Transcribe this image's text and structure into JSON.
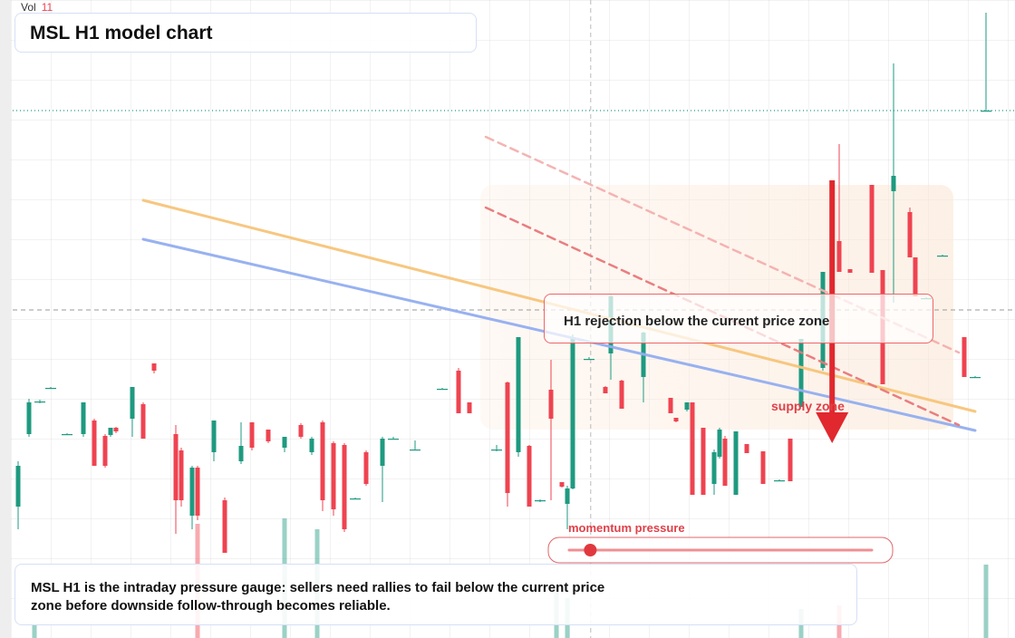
{
  "chart_data": {
    "type": "candlestick",
    "title": "MSL H1 model chart",
    "xlim": [
      0,
      184
    ],
    "ylim": [
      0,
      70.4
    ],
    "up_color": "#1e9a80",
    "down_color": "#ef4350",
    "x": [
      1,
      3,
      5,
      7,
      10,
      13,
      15,
      17,
      18,
      19,
      22,
      24,
      26,
      30,
      31,
      33,
      34,
      37,
      39,
      42,
      44,
      47,
      50,
      53,
      55,
      57,
      59,
      61,
      63,
      65,
      68,
      70,
      74,
      79,
      82,
      84,
      89,
      91,
      93,
      95,
      97,
      99,
      101,
      102,
      103,
      106,
      109,
      110,
      112,
      116,
      121,
      122,
      124,
      125,
      127,
      129,
      130,
      131,
      133,
      135,
      138,
      141,
      143,
      145,
      149,
      152,
      154,
      158,
      160,
      162,
      165,
      166,
      168,
      171,
      175,
      177,
      179
    ],
    "ohlc": [
      [
        14.5,
        19.5,
        12,
        19
      ],
      [
        22.5,
        26.4,
        22.2,
        26
      ],
      [
        26,
        26.3,
        25.9,
        26.1
      ],
      [
        27.6,
        27.7,
        27.5,
        27.6
      ],
      [
        22.5,
        22.6,
        22.4,
        22.5
      ],
      [
        22.5,
        26,
        22.2,
        26
      ],
      [
        24,
        24.2,
        19,
        19
      ],
      [
        22.3,
        22.5,
        18.8,
        19
      ],
      [
        22.4,
        23.2,
        22.2,
        23.2
      ],
      [
        23.2,
        23.3,
        22.6,
        22.8
      ],
      [
        24.2,
        27.7,
        22.2,
        27.7
      ],
      [
        25.8,
        26,
        22,
        22
      ],
      [
        30.3,
        30.3,
        29.2,
        29.5
      ],
      [
        22.5,
        23.5,
        11.5,
        15.2
      ],
      [
        20.7,
        21,
        14.5,
        15.2
      ],
      [
        13.5,
        19,
        12,
        18.8
      ],
      [
        18.8,
        19,
        13,
        13.5
      ],
      [
        20.5,
        24,
        19.5,
        24
      ],
      [
        15.2,
        15.5,
        9.4,
        9.4
      ],
      [
        19.5,
        23.8,
        19.2,
        21.2
      ],
      [
        23.8,
        23.8,
        20.7,
        21
      ],
      [
        23,
        23,
        21.5,
        21.7
      ],
      [
        21,
        22.2,
        20.5,
        22.2
      ],
      [
        23.5,
        23.7,
        22,
        22.2
      ],
      [
        20.5,
        22.2,
        20.2,
        22
      ],
      [
        23.8,
        24,
        14,
        15.2
      ],
      [
        21.5,
        21.7,
        13.5,
        14.2
      ],
      [
        21.3,
        21.5,
        11.7,
        12
      ],
      [
        15.4,
        15.5,
        15.3,
        15.4
      ],
      [
        20.5,
        20.7,
        16.8,
        17
      ],
      [
        19,
        22.2,
        15,
        22
      ],
      [
        22,
        22.2,
        21.9,
        22
      ],
      [
        20.8,
        21.8,
        20.7,
        20.8
      ],
      [
        27.5,
        27.6,
        27.4,
        27.5
      ],
      [
        29.5,
        29.8,
        24.8,
        24.8
      ],
      [
        26,
        26,
        24.8,
        24.8
      ],
      [
        20.8,
        21.3,
        20.6,
        20.8
      ],
      [
        28.2,
        28.3,
        14.5,
        16
      ],
      [
        20.5,
        33.2,
        20,
        33.2
      ],
      [
        21.2,
        21.3,
        14.5,
        14.5
      ],
      [
        15.2,
        15.3,
        15,
        15.2
      ],
      [
        27.4,
        30.7,
        15.2,
        24.2
      ],
      [
        17.2,
        17.2,
        16.6,
        16.7
      ],
      [
        14.8,
        16.8,
        12,
        16.5
      ],
      [
        16.5,
        33.5,
        16.4,
        33.2
      ],
      [
        30.8,
        31,
        30.7,
        30.8
      ],
      [
        27.7,
        27.8,
        27,
        27
      ],
      [
        31.4,
        38,
        28.5,
        37.7
      ],
      [
        28.4,
        28.5,
        25.3,
        25.3
      ],
      [
        28.8,
        33.8,
        26,
        33.7
      ],
      [
        26.5,
        26.5,
        24.8,
        24.8
      ],
      [
        24.3,
        24.3,
        23.8,
        23.9
      ],
      [
        25.2,
        26,
        25,
        26
      ],
      [
        26,
        26,
        15.8,
        15.8
      ],
      [
        23.2,
        23.2,
        15.8,
        15.8
      ],
      [
        17,
        20.8,
        15.8,
        20.5
      ],
      [
        20,
        23.2,
        19.8,
        23
      ],
      [
        22,
        22.3,
        16.8,
        16.8
      ],
      [
        15.8,
        22.8,
        15.8,
        22.8
      ],
      [
        21.4,
        21.4,
        20.4,
        20.4
      ],
      [
        20.6,
        20.6,
        17,
        17
      ],
      [
        17.4,
        17.5,
        17.3,
        17.4
      ],
      [
        22,
        22,
        17.3,
        17.3
      ],
      [
        25.5,
        33,
        25.5,
        33
      ],
      [
        29.8,
        40.4,
        29.5,
        40.4
      ],
      [
        43.8,
        54.5,
        40.4,
        40.4
      ],
      [
        40.7,
        40.7,
        40.3,
        40.3
      ],
      [
        50,
        50,
        40.3,
        40.3
      ],
      [
        40.6,
        40.6,
        28,
        28
      ],
      [
        49.3,
        63.4,
        37,
        51
      ],
      [
        47,
        47.5,
        42,
        42
      ],
      [
        42,
        42,
        37.7,
        37.7
      ],
      [
        37.5,
        37.6,
        37.4,
        37.5
      ],
      [
        42.2,
        42.3,
        42.1,
        42.2
      ],
      [
        33.2,
        33.2,
        28.8,
        28.8
      ],
      [
        28.8,
        28.9,
        28.7,
        28.8
      ],
      [
        58.2,
        69,
        58.2,
        58.2
      ]
    ],
    "volume": {
      "label": "Vol",
      "last": 11,
      "vlim": [
        0,
        70.4
      ],
      "x": [
        4,
        34,
        50,
        56,
        100,
        102,
        145,
        152,
        179
      ],
      "values": [
        1.4,
        12.6,
        13.2,
        12,
        5.4,
        4.4,
        3.2,
        3.6,
        8.1
      ],
      "colors": [
        "#1e9a80",
        "#ef4350",
        "#1e9a80",
        "#1e9a80",
        "#1e9a80",
        "#1e9a80",
        "#1e9a80",
        "#ef4350",
        "#1e9a80"
      ]
    },
    "overlays": [
      {
        "color": "#f7c57a",
        "dash": false,
        "x": [
          24,
          177
        ],
        "y": [
          48.3,
          25
        ]
      },
      {
        "color": "#93aef0",
        "dash": false,
        "x": [
          24,
          177
        ],
        "y": [
          44,
          22.9
        ]
      },
      {
        "color": "#e8787a",
        "dash": true,
        "x": [
          87,
          174
        ],
        "y": [
          47.5,
          23.5
        ]
      },
      {
        "color": "#f4b0ae",
        "dash": true,
        "x": [
          87,
          174
        ],
        "y": [
          55.3,
          31.5
        ]
      }
    ],
    "price_line": {
      "value": 58.2,
      "color": "#1e9a80"
    },
    "crosshair": {
      "x": 106.3,
      "y": 36.2
    },
    "supply_zone": {
      "label": "supply zone",
      "x": [
        86,
        173
      ],
      "y": [
        23,
        50
      ]
    },
    "arrow": {
      "x": 150.7,
      "from": 50.5,
      "to": 21.5,
      "color": "#e0282e"
    },
    "callout": "H1 rejection below the current price zone",
    "momentum": {
      "label": "momentum pressure",
      "value": 7,
      "range": [
        0,
        100
      ]
    },
    "description": "MSL H1 is the intraday pressure gauge: sellers need rallies to fail below the current price zone before downside follow-through becomes reliable."
  }
}
